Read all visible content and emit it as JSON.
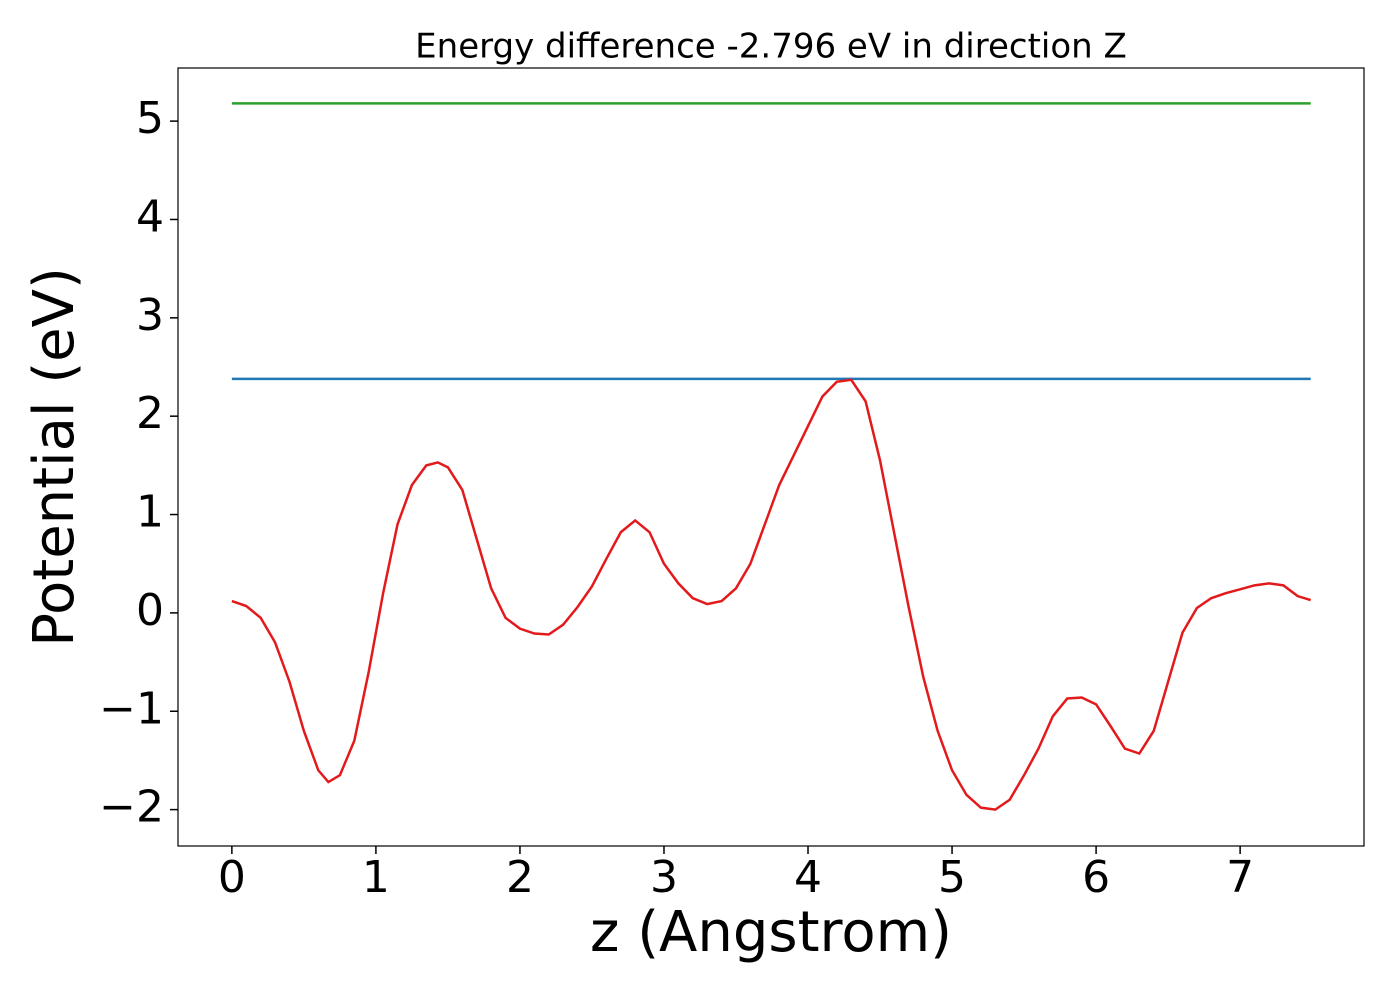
{
  "chart_data": {
    "type": "line",
    "title": "Energy difference -2.796 eV in direction Z",
    "x_label": "z (Angstrom)",
    "y_label": "Potential (eV)",
    "xlim": [
      -0.374,
      7.86
    ],
    "ylim": [
      -2.37,
      5.54
    ],
    "xticks": [
      0,
      1,
      2,
      3,
      4,
      5,
      6,
      7
    ],
    "yticks": [
      {
        "value": -2,
        "label": "−2"
      },
      {
        "value": -1,
        "label": "−1"
      },
      0,
      1,
      2,
      3,
      4,
      5
    ],
    "series": [
      {
        "color": "#2ca02c",
        "x": [
          0,
          7.49
        ],
        "values": [
          5.18,
          5.18
        ]
      },
      {
        "color": "#1f77b4",
        "x": [
          0,
          7.49
        ],
        "values": [
          2.379,
          2.379
        ]
      },
      {
        "color": "#e31a1c",
        "x": [
          0,
          0.1,
          0.2,
          0.3,
          0.4,
          0.5,
          0.6,
          0.67,
          0.75,
          0.85,
          0.95,
          1.05,
          1.15,
          1.25,
          1.35,
          1.43,
          1.5,
          1.6,
          1.7,
          1.8,
          1.9,
          2.0,
          2.1,
          2.2,
          2.3,
          2.4,
          2.5,
          2.6,
          2.7,
          2.8,
          2.9,
          3.0,
          3.1,
          3.2,
          3.3,
          3.4,
          3.5,
          3.6,
          3.7,
          3.8,
          3.9,
          4.0,
          4.1,
          4.2,
          4.3,
          4.4,
          4.5,
          4.6,
          4.7,
          4.8,
          4.9,
          5.0,
          5.1,
          5.2,
          5.3,
          5.4,
          5.5,
          5.6,
          5.7,
          5.8,
          5.9,
          6.0,
          6.1,
          6.2,
          6.3,
          6.4,
          6.5,
          6.6,
          6.7,
          6.8,
          6.9,
          7.0,
          7.1,
          7.2,
          7.3,
          7.4,
          7.49
        ],
        "values": [
          0.12,
          0.07,
          -0.05,
          -0.3,
          -0.7,
          -1.2,
          -1.6,
          -1.72,
          -1.65,
          -1.3,
          -0.6,
          0.2,
          0.9,
          1.3,
          1.5,
          1.53,
          1.48,
          1.25,
          0.75,
          0.25,
          -0.05,
          -0.16,
          -0.21,
          -0.22,
          -0.12,
          0.06,
          0.27,
          0.55,
          0.82,
          0.94,
          0.82,
          0.5,
          0.3,
          0.15,
          0.09,
          0.12,
          0.25,
          0.5,
          0.9,
          1.3,
          1.6,
          1.9,
          2.2,
          2.35,
          2.37,
          2.15,
          1.55,
          0.8,
          0.05,
          -0.65,
          -1.2,
          -1.6,
          -1.85,
          -1.98,
          -2.0,
          -1.9,
          -1.65,
          -1.38,
          -1.05,
          -0.87,
          -0.86,
          -0.93,
          -1.15,
          -1.38,
          -1.43,
          -1.2,
          -0.7,
          -0.2,
          0.05,
          0.15,
          0.2,
          0.24,
          0.28,
          0.3,
          0.28,
          0.17,
          0.13
        ]
      }
    ]
  }
}
